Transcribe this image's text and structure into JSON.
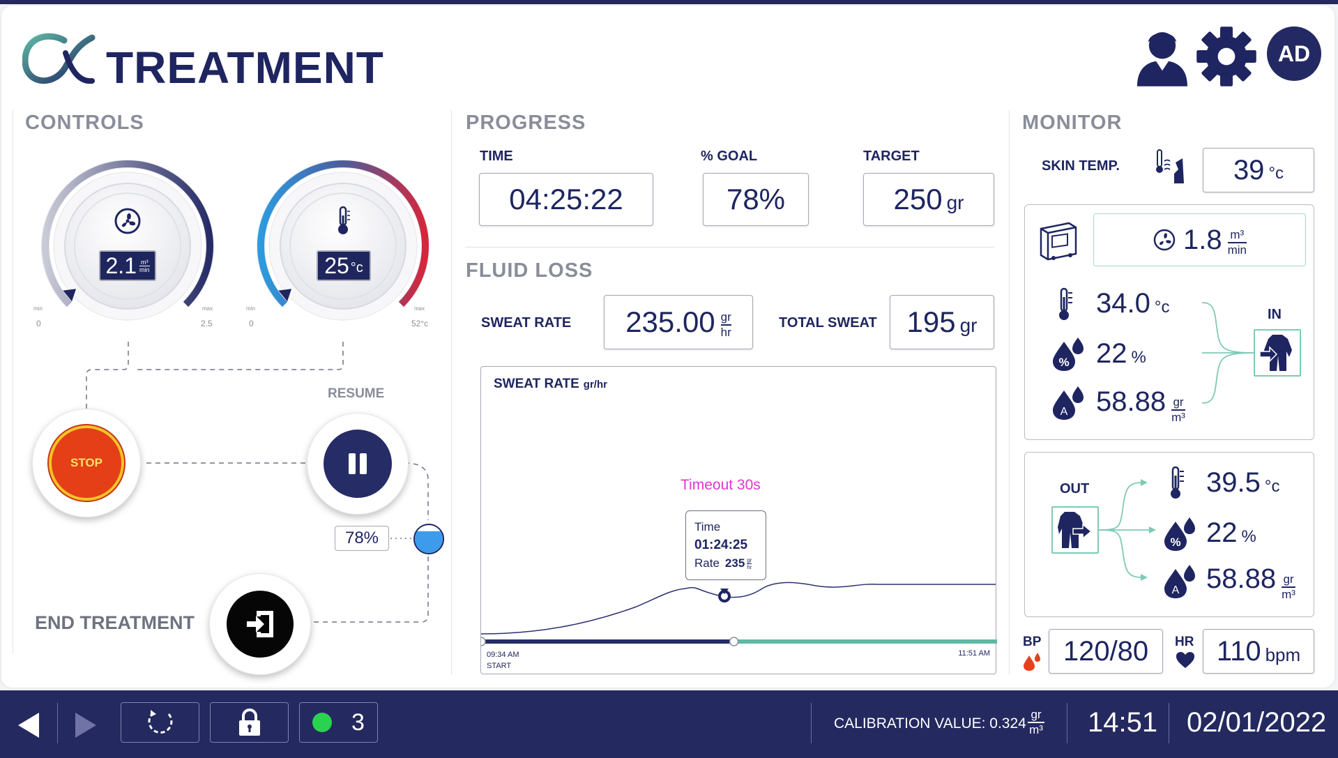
{
  "header": {
    "title": "TREATMENT",
    "avatar_initials": "AD",
    "icons": [
      "patient-profile-icon",
      "settings-gear-icon"
    ]
  },
  "controls": {
    "title": "CONTROLS",
    "fan_dial": {
      "value": "2.1",
      "unit_num": "m³",
      "unit_den": "min",
      "min_label": "min",
      "max_label": "max",
      "min_value": "0",
      "max_value": "2.5",
      "level": 0.84
    },
    "temp_dial": {
      "value": "25",
      "unit": "°c",
      "min_label": "min",
      "max_label": "max",
      "min_value": "0",
      "max_value": "52°c",
      "level": 0.48
    },
    "stop_label": "STOP",
    "resume_label": "RESUME",
    "level_percent": "78%",
    "level_fill": 0.78,
    "end_treatment_label": "END TREATMENT"
  },
  "progress": {
    "title": "PROGRESS",
    "time_label": "TIME",
    "time_value": "04:25:22",
    "goal_label": "% GOAL",
    "goal_value": "78%",
    "target_label": "TARGET",
    "target_value": "250",
    "target_unit": "gr"
  },
  "fluid_loss": {
    "title": "FLUID LOSS",
    "sweat_rate_label": "SWEAT RATE",
    "sweat_rate_value": "235.00",
    "sweat_rate_unit_num": "gr",
    "sweat_rate_unit_den": "hr",
    "total_sweat_label": "TOTAL SWEAT",
    "total_sweat_value": "195",
    "total_sweat_unit": "gr"
  },
  "chart": {
    "title": "SWEAT RATE",
    "title_unit": "gr/hr",
    "timeout_text": "Timeout 30s",
    "tooltip": {
      "time_label": "Time",
      "time_value": "01:24:25",
      "rate_label": "Rate",
      "rate_value": "235",
      "rate_unit_num": "gr",
      "rate_unit_den": "hr"
    },
    "start_time": "09:34 AM",
    "start_label": "START",
    "end_time": "11:51 AM",
    "progress_fraction": 0.49
  },
  "monitor": {
    "title": "MONITOR",
    "skin_temp_label": "SKIN TEMP.",
    "skin_temp_value": "39",
    "skin_temp_unit": "°c",
    "in_label": "IN",
    "out_label": "OUT",
    "flow_value": "1.8",
    "flow_unit_num": "m³",
    "flow_unit_den": "min",
    "in_temp": "34.0",
    "in_temp_unit": "°c",
    "in_humidity": "22",
    "in_humidity_unit": "%",
    "in_abs": "58.88",
    "abs_unit_num": "gr",
    "abs_unit_den": "m³",
    "out_temp": "39.5",
    "out_temp_unit": "°c",
    "out_humidity": "22",
    "out_humidity_unit": "%",
    "out_abs": "58.88",
    "bp_label": "BP",
    "bp_value": "120/80",
    "hr_label": "HR",
    "hr_value": "110",
    "hr_unit": "bpm"
  },
  "status_bar": {
    "alert_count": "3",
    "calibration_label": "CALIBRATION VALUE: 0.324",
    "cal_unit_num": "gr",
    "cal_unit_den": "m³",
    "time": "14:51",
    "date": "02/01/2022"
  },
  "colors": {
    "navy": "#1e2560",
    "stop_red": "#e8401c",
    "teal": "#5fb8a4",
    "magenta": "#e633d0",
    "status_green": "#2ad24f"
  }
}
